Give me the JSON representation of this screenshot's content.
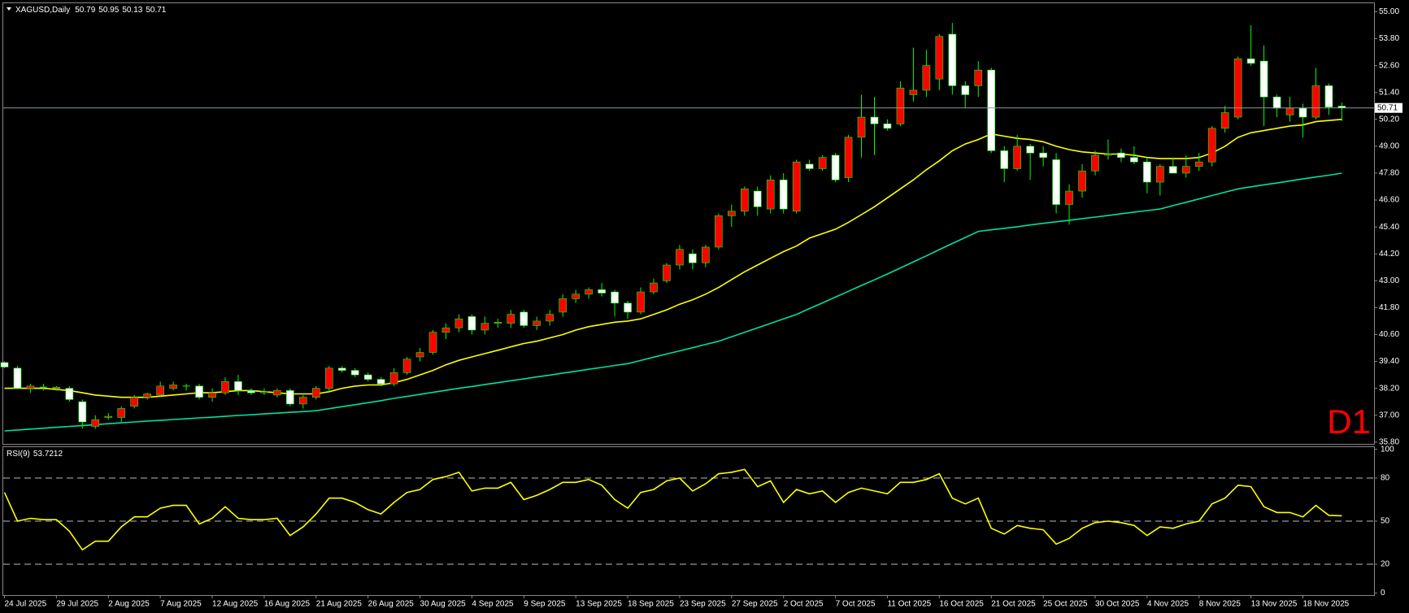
{
  "chart_data": [
    {
      "type": "candlestick",
      "title": "XAGUSD,Daily",
      "timeframe_label": "D1",
      "up_color": "#ff0000",
      "down_color": "#ffffff",
      "wick_color": "#00ff00",
      "price_line_color": "#8a9aa6",
      "categories": [
        "24 Jul 2025",
        null,
        null,
        null,
        "29 Jul 2025",
        null,
        null,
        null,
        "2 Aug 2025",
        null,
        null,
        null,
        "7 Aug 2025",
        null,
        null,
        null,
        "12 Aug 2025",
        null,
        null,
        null,
        "16 Aug 2025",
        null,
        null,
        null,
        "21 Aug 2025",
        null,
        null,
        null,
        "26 Aug 2025",
        null,
        null,
        null,
        "30 Aug 2025",
        null,
        null,
        null,
        "4 Sep 2025",
        null,
        null,
        null,
        "9 Sep 2025",
        null,
        null,
        null,
        "13 Sep 2025",
        null,
        null,
        null,
        "18 Sep 2025",
        null,
        null,
        null,
        "23 Sep 2025",
        null,
        null,
        null,
        "27 Sep 2025",
        null,
        null,
        null,
        "2 Oct 2025",
        null,
        null,
        null,
        "7 Oct 2025",
        null,
        null,
        null,
        "11 Oct 2025",
        null,
        null,
        null,
        "16 Oct 2025",
        null,
        null,
        null,
        "21 Oct 2025",
        null,
        null,
        null,
        "25 Oct 2025",
        null,
        null,
        null,
        "30 Oct 2025",
        null,
        null,
        null,
        "4 Nov 2025",
        null,
        null,
        null,
        "8 Nov 2025",
        null,
        null,
        null,
        "13 Nov 2025",
        null,
        null,
        null,
        "18 Nov 2025",
        null,
        null,
        null
      ],
      "ohlc": [
        [
          39.35,
          39.4,
          39.1,
          39.15
        ],
        [
          39.1,
          39.2,
          38.2,
          38.2
        ],
        [
          38.2,
          38.4,
          38.0,
          38.3
        ],
        [
          38.25,
          38.4,
          38.1,
          38.25
        ],
        [
          38.2,
          38.3,
          38.1,
          38.25
        ],
        [
          38.2,
          38.3,
          37.6,
          37.7
        ],
        [
          37.6,
          37.7,
          36.4,
          36.7
        ],
        [
          36.5,
          37.0,
          36.4,
          36.8
        ],
        [
          36.9,
          37.1,
          36.8,
          36.95
        ],
        [
          36.9,
          37.4,
          36.7,
          37.3
        ],
        [
          37.4,
          37.9,
          37.3,
          37.8
        ],
        [
          37.8,
          38.0,
          37.7,
          37.95
        ],
        [
          37.9,
          38.5,
          37.8,
          38.3
        ],
        [
          38.2,
          38.5,
          38.1,
          38.35
        ],
        [
          38.3,
          38.4,
          38.1,
          38.3
        ],
        [
          38.3,
          38.4,
          37.7,
          37.8
        ],
        [
          37.8,
          38.2,
          37.6,
          38.0
        ],
        [
          38.0,
          38.7,
          37.9,
          38.5
        ],
        [
          38.5,
          38.8,
          37.9,
          38.1
        ],
        [
          38.1,
          38.2,
          37.9,
          38.0
        ],
        [
          38.0,
          38.2,
          37.9,
          38.05
        ],
        [
          37.9,
          38.2,
          37.8,
          38.1
        ],
        [
          38.1,
          38.2,
          37.4,
          37.5
        ],
        [
          37.5,
          37.9,
          37.3,
          37.8
        ],
        [
          37.8,
          38.3,
          37.7,
          38.2
        ],
        [
          38.2,
          39.2,
          38.0,
          39.1
        ],
        [
          39.1,
          39.2,
          38.9,
          39.0
        ],
        [
          39.0,
          39.1,
          38.7,
          38.8
        ],
        [
          38.8,
          38.9,
          38.5,
          38.6
        ],
        [
          38.6,
          38.7,
          38.3,
          38.4
        ],
        [
          38.4,
          39.1,
          38.3,
          38.9
        ],
        [
          38.9,
          39.6,
          38.8,
          39.5
        ],
        [
          39.6,
          40.0,
          39.4,
          39.8
        ],
        [
          39.8,
          40.8,
          39.7,
          40.7
        ],
        [
          40.7,
          41.1,
          40.4,
          40.9
        ],
        [
          40.9,
          41.5,
          40.7,
          41.3
        ],
        [
          41.4,
          41.5,
          40.6,
          40.8
        ],
        [
          40.8,
          41.4,
          40.6,
          41.1
        ],
        [
          41.1,
          41.3,
          40.9,
          41.15
        ],
        [
          41.1,
          41.7,
          40.9,
          41.5
        ],
        [
          41.6,
          41.7,
          40.9,
          41.0
        ],
        [
          41.0,
          41.4,
          40.8,
          41.2
        ],
        [
          41.2,
          41.7,
          41.0,
          41.5
        ],
        [
          41.6,
          42.4,
          41.4,
          42.2
        ],
        [
          42.2,
          42.6,
          42.0,
          42.4
        ],
        [
          42.4,
          42.7,
          42.2,
          42.6
        ],
        [
          42.6,
          42.9,
          42.3,
          42.45
        ],
        [
          42.5,
          42.6,
          41.4,
          42.0
        ],
        [
          42.0,
          42.1,
          41.3,
          41.6
        ],
        [
          41.6,
          42.7,
          41.5,
          42.5
        ],
        [
          42.5,
          43.1,
          42.4,
          42.9
        ],
        [
          43.0,
          43.8,
          42.9,
          43.7
        ],
        [
          43.7,
          44.6,
          43.5,
          44.4
        ],
        [
          44.2,
          44.4,
          43.5,
          43.8
        ],
        [
          43.8,
          44.6,
          43.6,
          44.5
        ],
        [
          44.5,
          46.0,
          44.4,
          45.9
        ],
        [
          45.9,
          46.4,
          45.4,
          46.1
        ],
        [
          46.1,
          47.2,
          45.9,
          47.1
        ],
        [
          47.0,
          47.2,
          45.9,
          46.3
        ],
        [
          46.2,
          47.7,
          46.0,
          47.5
        ],
        [
          47.5,
          47.8,
          46.0,
          46.2
        ],
        [
          46.1,
          48.4,
          46.0,
          48.3
        ],
        [
          48.2,
          48.4,
          47.9,
          48.0
        ],
        [
          48.0,
          48.6,
          47.9,
          48.5
        ],
        [
          48.6,
          48.7,
          47.4,
          47.5
        ],
        [
          47.6,
          49.5,
          47.4,
          49.4
        ],
        [
          49.4,
          51.3,
          48.5,
          50.3
        ],
        [
          50.3,
          51.2,
          48.6,
          50.0
        ],
        [
          50.0,
          50.2,
          49.7,
          49.8
        ],
        [
          50.0,
          51.9,
          49.9,
          51.6
        ],
        [
          51.3,
          53.4,
          51.0,
          51.5
        ],
        [
          51.5,
          53.3,
          51.2,
          52.6
        ],
        [
          52.0,
          54.0,
          51.5,
          53.9
        ],
        [
          54.0,
          54.5,
          51.3,
          51.7
        ],
        [
          51.7,
          51.9,
          50.7,
          51.3
        ],
        [
          51.7,
          52.8,
          51.2,
          52.4
        ],
        [
          52.4,
          52.5,
          48.7,
          48.8
        ],
        [
          48.8,
          49.0,
          47.4,
          48.0
        ],
        [
          48.0,
          49.5,
          47.9,
          49.0
        ],
        [
          49.0,
          49.1,
          47.5,
          48.7
        ],
        [
          48.7,
          49.0,
          48.1,
          48.5
        ],
        [
          48.4,
          48.7,
          46.0,
          46.4
        ],
        [
          46.4,
          47.3,
          45.5,
          47.0
        ],
        [
          47.0,
          48.2,
          46.7,
          47.9
        ],
        [
          47.9,
          48.8,
          47.7,
          48.6
        ],
        [
          48.6,
          49.3,
          48.4,
          48.65
        ],
        [
          48.7,
          48.9,
          48.3,
          48.5
        ],
        [
          48.5,
          49.0,
          48.2,
          48.3
        ],
        [
          48.3,
          48.5,
          46.9,
          47.4
        ],
        [
          47.4,
          48.2,
          46.8,
          48.1
        ],
        [
          48.1,
          48.5,
          47.8,
          47.8
        ],
        [
          47.8,
          48.6,
          47.6,
          48.1
        ],
        [
          48.1,
          48.7,
          47.9,
          48.3
        ],
        [
          48.3,
          49.9,
          48.1,
          49.8
        ],
        [
          49.8,
          50.8,
          49.6,
          50.5
        ],
        [
          50.3,
          53.0,
          50.2,
          52.9
        ],
        [
          52.9,
          54.4,
          52.6,
          52.7
        ],
        [
          52.8,
          53.5,
          49.9,
          51.2
        ],
        [
          51.2,
          51.3,
          50.3,
          50.7
        ],
        [
          50.4,
          51.2,
          50.1,
          50.7
        ],
        [
          50.7,
          50.9,
          49.4,
          50.3
        ],
        [
          50.3,
          52.5,
          50.2,
          51.7
        ],
        [
          51.7,
          51.8,
          50.4,
          50.75
        ],
        [
          50.79,
          50.95,
          50.13,
          50.71
        ]
      ],
      "series": [
        {
          "color": "#ffff00",
          "values": [
            38.2,
            38.2,
            38.2,
            38.2,
            38.15,
            38.1,
            38.0,
            37.9,
            37.85,
            37.8,
            37.8,
            37.8,
            37.85,
            37.9,
            37.95,
            38.0,
            38.0,
            38.05,
            38.1,
            38.1,
            38.05,
            38.0,
            37.95,
            37.95,
            37.95,
            38.05,
            38.2,
            38.3,
            38.35,
            38.35,
            38.45,
            38.6,
            38.8,
            39.0,
            39.25,
            39.45,
            39.6,
            39.75,
            39.9,
            40.05,
            40.2,
            40.3,
            40.45,
            40.6,
            40.8,
            40.95,
            41.05,
            41.15,
            41.2,
            41.3,
            41.5,
            41.7,
            41.95,
            42.15,
            42.4,
            42.7,
            43.05,
            43.4,
            43.7,
            44.0,
            44.3,
            44.55,
            44.9,
            45.1,
            45.3,
            45.6,
            45.95,
            46.3,
            46.7,
            47.1,
            47.5,
            47.95,
            48.35,
            48.8,
            49.1,
            49.3,
            49.55,
            49.45,
            49.35,
            49.3,
            49.2,
            49.0,
            48.85,
            48.75,
            48.7,
            48.65,
            48.65,
            48.6,
            48.5,
            48.45,
            48.45,
            48.45,
            48.5,
            48.7,
            49.0,
            49.4,
            49.6,
            49.7,
            49.8,
            49.9,
            49.95,
            50.1,
            50.15,
            50.2
          ]
        },
        {
          "color": "#00e0a0",
          "values": [
            36.3,
            36.34,
            36.38,
            36.42,
            36.46,
            36.5,
            36.54,
            36.58,
            36.62,
            36.66,
            36.7,
            36.74,
            36.77,
            36.81,
            36.84,
            36.88,
            36.91,
            36.95,
            36.99,
            37.02,
            37.06,
            37.09,
            37.13,
            37.16,
            37.2,
            37.29,
            37.38,
            37.47,
            37.56,
            37.65,
            37.75,
            37.84,
            37.93,
            38.02,
            38.11,
            38.2,
            38.28,
            38.37,
            38.45,
            38.54,
            38.62,
            38.71,
            38.79,
            38.88,
            38.96,
            39.05,
            39.13,
            39.22,
            39.3,
            39.44,
            39.59,
            39.73,
            39.87,
            40.01,
            40.16,
            40.3,
            40.5,
            40.7,
            40.9,
            41.1,
            41.3,
            41.5,
            41.76,
            42.01,
            42.27,
            42.53,
            42.79,
            43.04,
            43.3,
            43.57,
            43.84,
            44.11,
            44.39,
            44.66,
            44.93,
            45.2,
            45.27,
            45.34,
            45.41,
            45.49,
            45.56,
            45.63,
            45.7,
            45.77,
            45.84,
            45.91,
            45.99,
            46.06,
            46.13,
            46.2,
            46.35,
            46.5,
            46.65,
            46.8,
            46.95,
            47.1,
            47.19,
            47.28,
            47.36,
            47.45,
            47.54,
            47.63,
            47.71,
            47.8
          ]
        }
      ],
      "ylim": [
        35.72,
        55.38
      ],
      "yticks": [
        {
          "value": 55,
          "label": "55.00"
        },
        {
          "value": 53.8,
          "label": "53.80"
        },
        {
          "value": 52.6,
          "label": "52.60"
        },
        {
          "value": 51.4,
          "label": "51.40"
        },
        {
          "value": 50.2,
          "label": "50.20"
        },
        {
          "value": 49,
          "label": "49.00"
        },
        {
          "value": 47.8,
          "label": "47.80"
        },
        {
          "value": 46.6,
          "label": "46.60"
        },
        {
          "value": 45.4,
          "label": "45.40"
        },
        {
          "value": 44.2,
          "label": "44.20"
        },
        {
          "value": 43,
          "label": "43.00"
        },
        {
          "value": 41.8,
          "label": "41.80"
        },
        {
          "value": 40.6,
          "label": "40.60"
        },
        {
          "value": 39.4,
          "label": "39.40"
        },
        {
          "value": 38.2,
          "label": "38.20"
        },
        {
          "value": 37,
          "label": "37.00"
        },
        {
          "value": 35.8,
          "label": "35.80"
        }
      ]
    },
    {
      "type": "line",
      "title": "RSI(9)",
      "color": "#ffff00",
      "level_color": "#bbbbbb",
      "values": [
        70,
        50,
        52,
        51,
        51,
        43,
        30,
        36,
        36,
        46,
        53,
        53,
        59,
        61,
        61,
        48,
        52,
        60,
        52,
        51,
        51,
        52,
        40,
        46,
        55,
        66,
        66,
        63,
        58,
        55,
        63,
        70,
        72,
        79,
        81,
        84,
        71,
        73,
        73,
        77,
        65,
        68,
        72,
        77,
        77,
        79,
        75,
        65,
        59,
        70,
        72,
        78,
        80,
        71,
        76,
        83,
        84,
        86,
        74,
        78,
        63,
        72,
        69,
        71,
        63,
        70,
        73,
        71,
        69,
        77,
        77,
        79,
        83,
        66,
        62,
        66,
        45,
        41,
        47,
        45,
        44,
        34,
        38,
        45,
        49,
        50,
        49,
        47,
        40,
        46,
        45,
        48,
        50,
        62,
        66,
        75,
        74,
        60,
        56,
        56,
        53,
        61,
        54,
        53.7212
      ],
      "ylim": [
        -1.5,
        101.5
      ],
      "yticks": [
        100,
        80,
        50,
        20,
        0
      ],
      "levels": [
        80,
        50,
        20
      ]
    }
  ]
}
